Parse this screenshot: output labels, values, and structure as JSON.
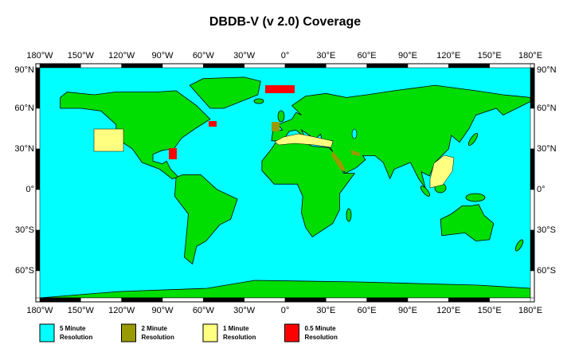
{
  "title": "DBDB-V (v 2.0) Coverage",
  "longitude_labels": [
    "180°W",
    "150°W",
    "120°W",
    "90°W",
    "60°W",
    "30°W",
    "0°",
    "30°E",
    "60°E",
    "90°E",
    "120°E",
    "150°E",
    "180°E"
  ],
  "latitude_labels": [
    "90°N",
    "60°N",
    "30°N",
    "0°",
    "30°S",
    "60°S"
  ],
  "legend": [
    {
      "lines": [
        "5 Minute",
        "Resolution"
      ],
      "color": "#00ffff"
    },
    {
      "lines": [
        "2 Minute",
        "Resolution"
      ],
      "color": "#999900"
    },
    {
      "lines": [
        "1 Minute",
        "Resolution"
      ],
      "color": "#ffff80"
    },
    {
      "lines": [
        "0.5 Minute",
        "Resolution"
      ],
      "color": "#ff0000"
    }
  ]
}
